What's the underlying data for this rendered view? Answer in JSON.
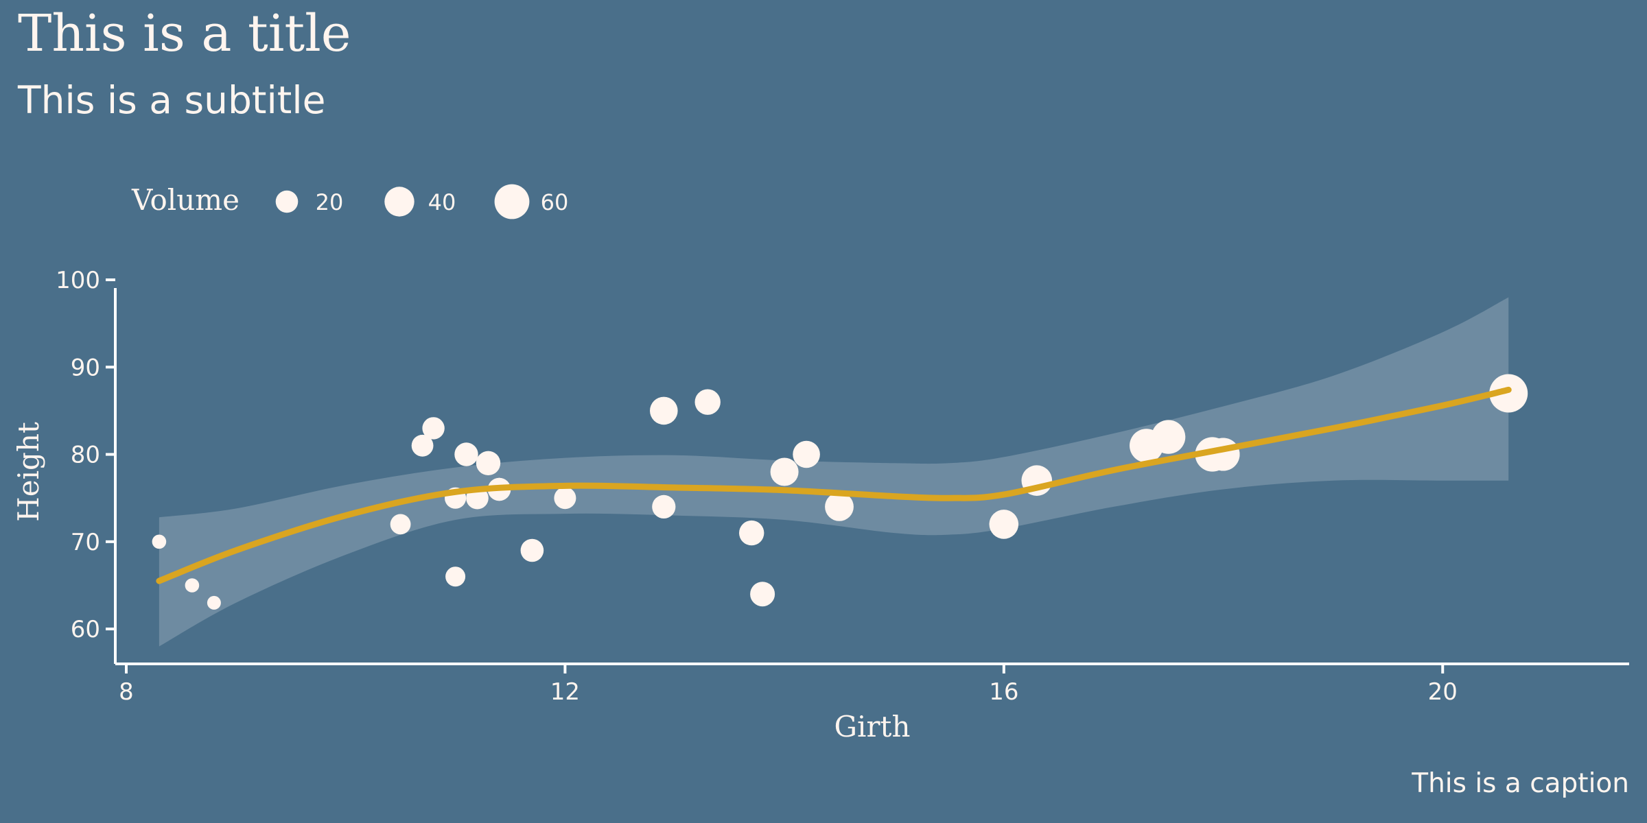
{
  "chart_data": {
    "type": "scatter",
    "title": "This is a title",
    "subtitle": "This is a subtitle",
    "caption": "This is a caption",
    "xlabel": "Girth",
    "ylabel": "Height",
    "xlim": [
      7.9,
      21.7
    ],
    "ylim": [
      56,
      100
    ],
    "xticks": [
      8,
      12,
      16,
      20
    ],
    "yticks": [
      60,
      70,
      80,
      90,
      100
    ],
    "grid": false,
    "legend": {
      "title": "Volume",
      "position": "top-left",
      "entries": [
        {
          "label": "20",
          "value": 20
        },
        {
          "label": "40",
          "value": 40
        },
        {
          "label": "60",
          "value": 60
        }
      ]
    },
    "colors": {
      "background": "#4a6f8a",
      "points": "#fff5ef",
      "smooth_line": "#daa520",
      "ribbon": "#ffffff",
      "text": "#fff5ef"
    },
    "points": [
      {
        "x": 8.3,
        "y": 70,
        "volume": 10.3
      },
      {
        "x": 8.6,
        "y": 65,
        "volume": 10.3
      },
      {
        "x": 8.8,
        "y": 63,
        "volume": 10.2
      },
      {
        "x": 10.5,
        "y": 72,
        "volume": 16.4
      },
      {
        "x": 10.7,
        "y": 81,
        "volume": 18.8
      },
      {
        "x": 10.8,
        "y": 83,
        "volume": 19.7
      },
      {
        "x": 11.0,
        "y": 66,
        "volume": 15.6
      },
      {
        "x": 11.0,
        "y": 75,
        "volume": 18.2
      },
      {
        "x": 11.1,
        "y": 80,
        "volume": 22.6
      },
      {
        "x": 11.2,
        "y": 75,
        "volume": 19.9
      },
      {
        "x": 11.3,
        "y": 79,
        "volume": 24.2
      },
      {
        "x": 11.4,
        "y": 76,
        "volume": 21.0
      },
      {
        "x": 11.4,
        "y": 76,
        "volume": 21.4
      },
      {
        "x": 11.7,
        "y": 69,
        "volume": 21.3
      },
      {
        "x": 12.0,
        "y": 75,
        "volume": 19.1
      },
      {
        "x": 12.9,
        "y": 74,
        "volume": 22.2
      },
      {
        "x": 12.9,
        "y": 85,
        "volume": 33.8
      },
      {
        "x": 13.3,
        "y": 86,
        "volume": 27.4
      },
      {
        "x": 13.7,
        "y": 71,
        "volume": 25.7
      },
      {
        "x": 13.8,
        "y": 64,
        "volume": 24.9
      },
      {
        "x": 14.0,
        "y": 78,
        "volume": 34.5
      },
      {
        "x": 14.2,
        "y": 80,
        "volume": 31.7
      },
      {
        "x": 14.5,
        "y": 74,
        "volume": 36.3
      },
      {
        "x": 16.0,
        "y": 72,
        "volume": 38.3
      },
      {
        "x": 16.3,
        "y": 77,
        "volume": 42.6
      },
      {
        "x": 17.3,
        "y": 81,
        "volume": 55.4
      },
      {
        "x": 17.5,
        "y": 82,
        "volume": 55.7
      },
      {
        "x": 17.9,
        "y": 80,
        "volume": 58.3
      },
      {
        "x": 18.0,
        "y": 80,
        "volume": 51.5
      },
      {
        "x": 18.0,
        "y": 80,
        "volume": 51.0
      },
      {
        "x": 20.6,
        "y": 87,
        "volume": 77.0
      }
    ],
    "smooth": {
      "x": [
        8.3,
        9.0,
        10.0,
        11.0,
        12.0,
        13.0,
        14.0,
        15.0,
        15.5,
        16.0,
        17.0,
        18.0,
        19.0,
        20.0,
        20.6
      ],
      "y": [
        65.5,
        69.0,
        73.0,
        75.7,
        76.4,
        76.2,
        75.9,
        75.2,
        75.0,
        75.4,
        78.2,
        80.6,
        83.0,
        85.6,
        87.4
      ],
      "lower": [
        58.0,
        63.0,
        68.5,
        72.5,
        73.2,
        73.0,
        72.5,
        71.0,
        70.8,
        71.5,
        74.0,
        76.0,
        77.0,
        77.0,
        77.0
      ],
      "upper": [
        72.8,
        73.8,
        76.5,
        78.5,
        79.6,
        79.9,
        79.3,
        79.0,
        79.0,
        79.7,
        82.4,
        85.5,
        89.0,
        94.0,
        98.0
      ]
    }
  }
}
